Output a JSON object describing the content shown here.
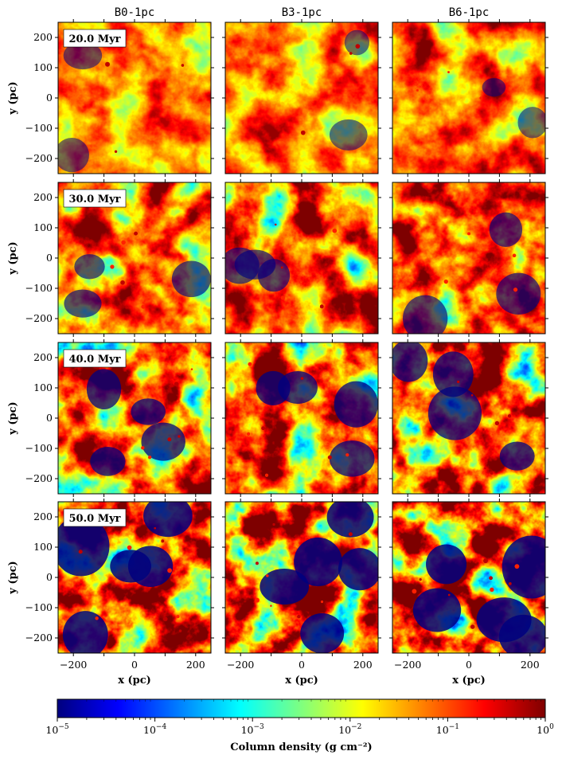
{
  "chart_data": {
    "type": "heatmap",
    "layout": "grid of column density maps",
    "columns": [
      "B0-1pc",
      "B3-1pc",
      "B6-1pc"
    ],
    "rows": [
      {
        "time_label": "20.0 Myr",
        "stage": 0
      },
      {
        "time_label": "30.0 Myr",
        "stage": 1
      },
      {
        "time_label": "40.0 Myr",
        "stage": 2
      },
      {
        "time_label": "50.0 Myr",
        "stage": 3
      }
    ],
    "xlabel": "x (pc)",
    "ylabel": "y (pc)",
    "xlim": [
      -250,
      250
    ],
    "ylim": [
      -250,
      250
    ],
    "xticks": [
      -200,
      -100,
      0,
      100,
      200
    ],
    "xtick_labels": [
      "−200",
      "0",
      "200"
    ],
    "yticks": [
      200,
      100,
      0,
      -100,
      -200
    ],
    "ytick_labels": [
      "200",
      "100",
      "0",
      "−100",
      "−200"
    ],
    "colorbar": {
      "label": "Column density  (g cm⁻²)",
      "scale": "log",
      "range": [
        1e-05,
        1
      ],
      "ticks": [
        {
          "base": "10",
          "exp": "−5"
        },
        {
          "base": "10",
          "exp": "−4"
        },
        {
          "base": "10",
          "exp": "−3"
        },
        {
          "base": "10",
          "exp": "−2"
        },
        {
          "base": "10",
          "exp": "−1"
        },
        {
          "base": "10",
          "exp": "0"
        }
      ],
      "colormap": "jet",
      "colors": [
        "#00007f",
        "#0000ff",
        "#007fff",
        "#00ffff",
        "#7fff7f",
        "#ffff00",
        "#ff7f00",
        "#ff0000",
        "#7f0000"
      ]
    }
  }
}
